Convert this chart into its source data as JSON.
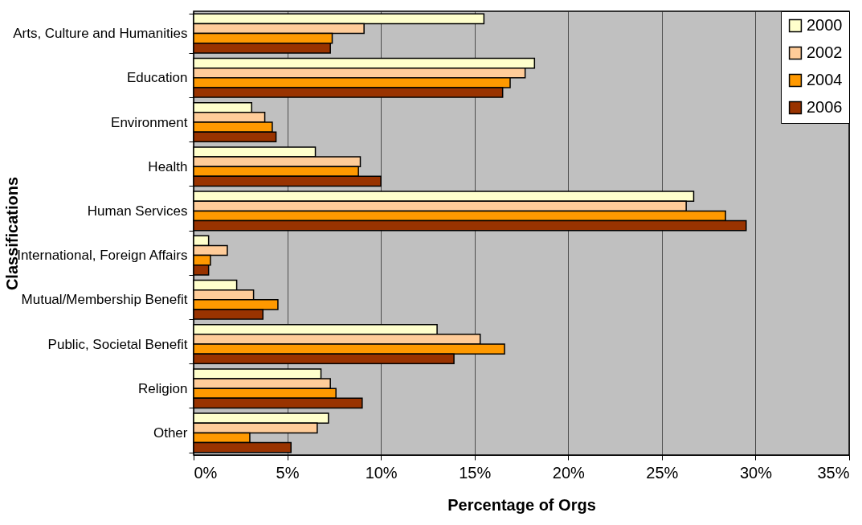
{
  "chart_data": {
    "type": "bar",
    "orientation": "horizontal",
    "xlabel": "Percentage of Orgs",
    "ylabel": "Classifications",
    "categories": [
      "Arts, Culture and Humanities",
      "Education",
      "Environment",
      "Health",
      "Human Services",
      "International, Foreign Affairs",
      "Mutual/Membership Benefit",
      "Public, Societal Benefit",
      "Religion",
      "Other"
    ],
    "series": [
      {
        "name": "2000",
        "color": "#ffffcc",
        "values": [
          15.5,
          18.2,
          3.1,
          6.5,
          26.7,
          0.8,
          2.3,
          13.0,
          6.8,
          7.2
        ]
      },
      {
        "name": "2002",
        "color": "#ffcc99",
        "values": [
          9.1,
          17.7,
          3.8,
          8.9,
          26.3,
          1.8,
          3.2,
          15.3,
          7.3,
          6.6
        ]
      },
      {
        "name": "2004",
        "color": "#ff9900",
        "values": [
          7.4,
          16.9,
          4.2,
          8.8,
          28.4,
          0.9,
          4.5,
          16.6,
          7.6,
          3.0
        ]
      },
      {
        "name": "2006",
        "color": "#993300",
        "values": [
          7.3,
          16.5,
          4.4,
          10.0,
          29.5,
          0.8,
          3.7,
          13.9,
          9.0,
          5.2
        ]
      }
    ],
    "xlim": [
      0,
      35
    ],
    "xticks": [
      {
        "value": 0,
        "label": "0%"
      },
      {
        "value": 5,
        "label": "5%"
      },
      {
        "value": 10,
        "label": "10%"
      },
      {
        "value": 15,
        "label": "15%"
      },
      {
        "value": 20,
        "label": "20%"
      },
      {
        "value": 25,
        "label": "25%"
      },
      {
        "value": 30,
        "label": "30%"
      },
      {
        "value": 35,
        "label": "35%"
      }
    ],
    "grid": "x",
    "legend": "top right"
  }
}
